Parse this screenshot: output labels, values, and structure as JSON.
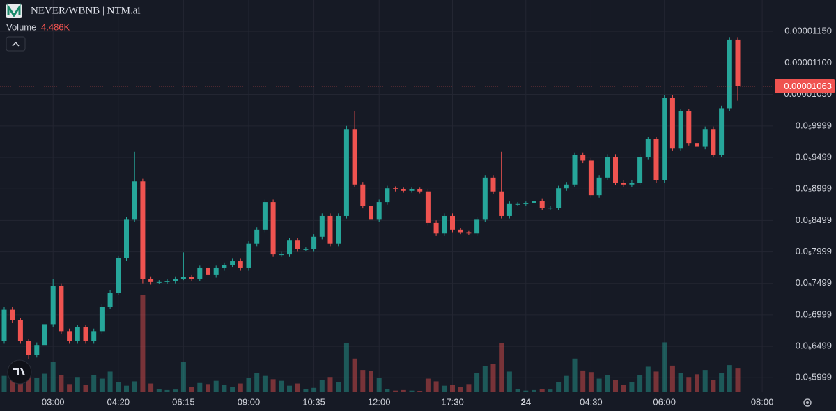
{
  "chart_data": {
    "type": "candlestick",
    "title": "NEVER/WBNB | NTM.ai",
    "volume_title": "Volume",
    "volume_label": "4.486K",
    "current_price": 1.063e-05,
    "up_color": "#26a69a",
    "down_color": "#ef5350",
    "grid": true,
    "ylim": [
      5.77e-06,
      1.2e-05
    ],
    "yticks": [
      {
        "value": 1.15e-05,
        "label": "0.00001150"
      },
      {
        "value": 1.1e-05,
        "label": "0.00001100"
      },
      {
        "value": 1.05e-05,
        "label": "0.00001050"
      },
      {
        "value": 9.999e-06,
        "label": "0.0₅9999"
      },
      {
        "value": 9.499e-06,
        "label": "0.0₅9499"
      },
      {
        "value": 8.999e-06,
        "label": "0.0₅8999"
      },
      {
        "value": 8.499e-06,
        "label": "0.0₅8499"
      },
      {
        "value": 7.999e-06,
        "label": "0.0₅7999"
      },
      {
        "value": 7.499e-06,
        "label": "0.0₅7499"
      },
      {
        "value": 6.999e-06,
        "label": "0.0₅6999"
      },
      {
        "value": 6.499e-06,
        "label": "0.0₅6499"
      },
      {
        "value": 5.999e-06,
        "label": "0.0₅5999"
      }
    ],
    "categories": [
      null,
      null,
      null,
      null,
      null,
      null,
      "03:00",
      null,
      null,
      null,
      null,
      null,
      null,
      null,
      "04:20",
      null,
      null,
      null,
      null,
      null,
      null,
      null,
      "06:15",
      null,
      null,
      null,
      null,
      null,
      null,
      null,
      "09:00",
      null,
      null,
      null,
      null,
      null,
      null,
      null,
      "10:35",
      null,
      null,
      null,
      null,
      null,
      null,
      null,
      "12:00",
      null,
      null,
      null,
      null,
      null,
      null,
      null,
      null,
      "17:30",
      null,
      null,
      null,
      null,
      null,
      null,
      null,
      null,
      "24",
      null,
      null,
      null,
      null,
      null,
      null,
      null,
      "04:30",
      null,
      null,
      null,
      null,
      null,
      null,
      null,
      null,
      "06:00",
      null,
      null,
      null,
      null,
      null,
      null,
      null,
      null,
      null,
      null,
      null,
      "08:00"
    ],
    "open": [
      6.58e-06,
      7.08e-06,
      6.91e-06,
      6.58e-06,
      6.36e-06,
      6.52e-06,
      6.85e-06,
      7.46e-06,
      6.74e-06,
      6.58e-06,
      6.8e-06,
      6.58e-06,
      6.74e-06,
      7.13e-06,
      7.35e-06,
      7.9e-06,
      8.51e-06,
      9.12e-06,
      7.57e-06,
      7.52e-06,
      7.52e-06,
      7.54e-06,
      7.57e-06,
      7.6e-06,
      7.57e-06,
      7.74e-06,
      7.63e-06,
      7.74e-06,
      7.79e-06,
      7.85e-06,
      7.74e-06,
      8.13e-06,
      8.35e-06,
      8.79e-06,
      7.96e-06,
      7.96e-06,
      8.18e-06,
      8.04e-06,
      8.04e-06,
      8.24e-06,
      8.57e-06,
      8.13e-06,
      8.57e-06,
      9.95e-06,
      9.07e-06,
      8.73e-06,
      8.51e-06,
      8.79e-06,
      9.01e-06,
      8.99e-06,
      8.97e-06,
      8.99e-06,
      8.96e-06,
      8.46e-06,
      8.29e-06,
      8.57e-06,
      8.35e-06,
      8.31e-06,
      8.29e-06,
      8.51e-06,
      9.18e-06,
      8.96e-06,
      8.57e-06,
      8.76e-06,
      8.76e-06,
      8.77e-06,
      8.81e-06,
      8.7e-06,
      8.7e-06,
      9.01e-06,
      9.07e-06,
      9.54e-06,
      9.45e-06,
      8.9e-06,
      9.18e-06,
      9.51e-06,
      9.1e-06,
      9.07e-06,
      9.1e-06,
      9.51e-06,
      9.79e-06,
      9.14e-06,
      1.045e-05,
      9.64e-06,
      1.023e-05,
      9.73e-06,
      9.67e-06,
      9.95e-06,
      9.54e-06,
      1.028e-05,
      1.137e-05,
      null,
      null,
      null
    ],
    "high": [
      7.12e-06,
      7.12e-06,
      6.95e-06,
      6.62e-06,
      6.56e-06,
      6.89e-06,
      7.57e-06,
      7.5e-06,
      6.78e-06,
      6.84e-06,
      6.84e-06,
      6.78e-06,
      7.17e-06,
      7.39e-06,
      7.94e-06,
      8.55e-06,
      9.59e-06,
      9.16e-06,
      7.61e-06,
      7.55e-06,
      7.57e-06,
      7.61e-06,
      7.99e-06,
      7.63e-06,
      7.78e-06,
      7.78e-06,
      7.78e-06,
      7.83e-06,
      7.89e-06,
      7.89e-06,
      8.17e-06,
      8.39e-06,
      8.83e-06,
      8.83e-06,
      8e-06,
      8.22e-06,
      8.22e-06,
      8.07e-06,
      8.28e-06,
      8.61e-06,
      8.61e-06,
      8.61e-06,
      1e-05,
      1.023e-05,
      9.11e-06,
      8.77e-06,
      8.83e-06,
      9.05e-06,
      9.04e-06,
      9.02e-06,
      9.02e-06,
      9.02e-06,
      9e-06,
      8.5e-06,
      8.61e-06,
      8.61e-06,
      8.38e-06,
      8.34e-06,
      8.55e-06,
      9.22e-06,
      9.22e-06,
      9.59e-06,
      8.8e-06,
      8.79e-06,
      8.8e-06,
      8.85e-06,
      8.85e-06,
      8.73e-06,
      9.05e-06,
      9.11e-06,
      9.58e-06,
      9.58e-06,
      9.49e-06,
      9.22e-06,
      9.55e-06,
      9.55e-06,
      9.14e-06,
      9.14e-06,
      9.55e-06,
      9.83e-06,
      9.83e-06,
      1.049e-05,
      1.049e-05,
      1.027e-05,
      1.027e-05,
      9.77e-06,
      9.99e-06,
      9.99e-06,
      1.032e-05,
      1.141e-05,
      1.141e-05,
      null,
      null,
      null
    ],
    "low": [
      6.54e-06,
      6.87e-06,
      6.54e-06,
      6.3e-06,
      6.32e-06,
      6.48e-06,
      6.81e-06,
      6.7e-06,
      6.54e-06,
      6.54e-06,
      6.54e-06,
      6.54e-06,
      6.7e-06,
      7.09e-06,
      7.31e-06,
      7.86e-06,
      8.47e-06,
      7.5e-06,
      7.48e-06,
      7.49e-06,
      7.49e-06,
      7.5e-06,
      7.55e-06,
      7.53e-06,
      7.53e-06,
      7.59e-06,
      7.59e-06,
      7.7e-06,
      7.75e-06,
      7.7e-06,
      7.7e-06,
      8.09e-06,
      8.31e-06,
      7.92e-06,
      7.92e-06,
      7.92e-06,
      8e-06,
      8.01e-06,
      8e-06,
      8.2e-06,
      8.09e-06,
      8.09e-06,
      8.53e-06,
      9.03e-06,
      8.69e-06,
      8.47e-06,
      8.47e-06,
      8.75e-06,
      8.96e-06,
      8.94e-06,
      8.94e-06,
      8.93e-06,
      8.42e-06,
      8.25e-06,
      8.25e-06,
      8.31e-06,
      8.28e-06,
      8.26e-06,
      8.25e-06,
      8.47e-06,
      8.92e-06,
      8.53e-06,
      8.53e-06,
      8.73e-06,
      8.73e-06,
      8.73e-06,
      8.66e-06,
      8.67e-06,
      8.66e-06,
      8.97e-06,
      9.03e-06,
      9.41e-06,
      8.86e-06,
      8.86e-06,
      9.14e-06,
      9.06e-06,
      9.03e-06,
      9.03e-06,
      9.06e-06,
      9.47e-06,
      9.1e-06,
      9.1e-06,
      9.6e-06,
      9.6e-06,
      9.69e-06,
      9.63e-06,
      9.63e-06,
      9.5e-06,
      9.5e-06,
      1.024e-05,
      1.04e-05,
      null,
      null,
      null
    ],
    "close": [
      7.08e-06,
      6.91e-06,
      6.58e-06,
      6.36e-06,
      6.52e-06,
      6.85e-06,
      7.46e-06,
      6.74e-06,
      6.58e-06,
      6.8e-06,
      6.58e-06,
      6.74e-06,
      7.13e-06,
      7.35e-06,
      7.9e-06,
      8.51e-06,
      9.12e-06,
      7.57e-06,
      7.52e-06,
      7.52e-06,
      7.54e-06,
      7.57e-06,
      7.6e-06,
      7.57e-06,
      7.74e-06,
      7.63e-06,
      7.74e-06,
      7.79e-06,
      7.85e-06,
      7.74e-06,
      8.13e-06,
      8.35e-06,
      8.79e-06,
      7.96e-06,
      7.96e-06,
      8.18e-06,
      8.04e-06,
      8.04e-06,
      8.24e-06,
      8.57e-06,
      8.13e-06,
      8.57e-06,
      9.95e-06,
      9.07e-06,
      8.73e-06,
      8.51e-06,
      8.79e-06,
      9.01e-06,
      8.99e-06,
      8.97e-06,
      8.99e-06,
      8.96e-06,
      8.46e-06,
      8.29e-06,
      8.57e-06,
      8.35e-06,
      8.31e-06,
      8.29e-06,
      8.51e-06,
      9.18e-06,
      8.96e-06,
      8.57e-06,
      8.76e-06,
      8.76e-06,
      8.77e-06,
      8.81e-06,
      8.7e-06,
      8.7e-06,
      9.01e-06,
      9.07e-06,
      9.54e-06,
      9.45e-06,
      8.9e-06,
      9.18e-06,
      9.51e-06,
      9.1e-06,
      9.07e-06,
      9.1e-06,
      9.51e-06,
      9.79e-06,
      9.14e-06,
      1.045e-05,
      9.64e-06,
      1.023e-05,
      9.73e-06,
      9.67e-06,
      9.95e-06,
      9.54e-06,
      1.028e-05,
      1.137e-05,
      1.063e-05,
      null,
      null,
      null
    ],
    "volume": [
      3000,
      2200,
      1800,
      4200,
      2600,
      3400,
      5600,
      3200,
      1500,
      2800,
      1400,
      3100,
      2500,
      3800,
      1800,
      1200,
      2000,
      18000,
      1600,
      600,
      400,
      500,
      5600,
      900,
      1700,
      1500,
      2100,
      1300,
      900,
      1600,
      2700,
      3500,
      3000,
      2400,
      2100,
      1200,
      1600,
      600,
      800,
      2300,
      2800,
      1900,
      9000,
      6200,
      4100,
      3900,
      2700,
      600,
      300,
      400,
      300,
      200,
      2500,
      2000,
      1200,
      1300,
      900,
      1500,
      3600,
      4800,
      5200,
      9000,
      3800,
      600,
      300,
      400,
      600,
      500,
      1900,
      3000,
      6200,
      4000,
      3700,
      2500,
      3100,
      2300,
      1400,
      1800,
      3200,
      4700,
      3800,
      9200,
      4900,
      3600,
      2800,
      3300,
      4100,
      2200,
      3500,
      5000,
      4486,
      null,
      null,
      null
    ]
  }
}
